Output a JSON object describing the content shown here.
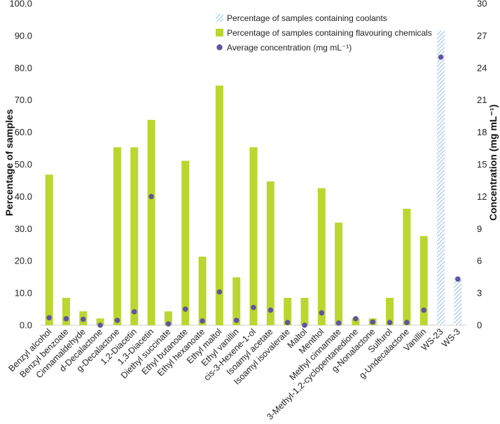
{
  "chart_data": {
    "type": "bar",
    "categories": [
      "Benzyl alcohol",
      "Benzyl benzoate",
      "Cinnamaldehyde",
      "d-Decalactone",
      "g-Decalactone",
      "1,2-Diacetin",
      "1,3-Diacetin",
      "Diethyl succinate",
      "Ethyl butanoate",
      "Ethyl hexanoate",
      "Ethyl maltol",
      "Ethyl vanillin",
      "cis-3-Hexene-1-ol",
      "Isoamyl acetate",
      "Isoamyl isovalerate",
      "Maltol",
      "Menthol",
      "Methyl cinnamate",
      "3-Methyl-1,2-cyclopentanedione",
      "g-Nonalactone",
      "Sulfurol",
      "g-Undecalactone",
      "Vanillin",
      "WS-23",
      "WS-3"
    ],
    "series": [
      {
        "name": "Percentage of samples containing coolants",
        "kind": "bar-hatched",
        "axis": "left",
        "color": "#9dc3e6",
        "values": [
          null,
          null,
          null,
          null,
          null,
          null,
          null,
          null,
          null,
          null,
          null,
          null,
          null,
          null,
          null,
          null,
          null,
          null,
          null,
          null,
          null,
          null,
          null,
          91.5,
          14.9
        ]
      },
      {
        "name": "Percentage of samples containing flavouring chemicals",
        "kind": "bar",
        "axis": "left",
        "color": "#bcd630",
        "values": [
          46.8,
          8.5,
          4.3,
          2.1,
          55.3,
          55.3,
          63.8,
          4.3,
          51.1,
          21.3,
          74.5,
          14.9,
          55.3,
          44.7,
          8.5,
          8.5,
          42.6,
          31.9,
          2.1,
          2.1,
          8.5,
          36.2,
          27.7,
          null,
          null
        ]
      },
      {
        "name": "Average concentration (mg mL⁻¹)",
        "kind": "scatter",
        "axis": "right",
        "color": "#5e56a0",
        "values": [
          0.7,
          0.6,
          0.55,
          0.0,
          0.45,
          1.25,
          12.0,
          0.12,
          1.5,
          0.4,
          3.1,
          0.45,
          1.65,
          1.4,
          0.25,
          0.0,
          1.15,
          0.2,
          0.6,
          0.3,
          0.25,
          0.25,
          1.4,
          25.0,
          4.3
        ]
      }
    ],
    "ylabel": "Percentage of samples",
    "ylabel_right": "Concentration (mg mL⁻¹)",
    "ylim": [
      0,
      100
    ],
    "ylim_right": [
      0,
      30
    ],
    "yticks": [
      "0.0",
      "10.0",
      "20.0",
      "30.0",
      "40.0",
      "50.0",
      "60.0",
      "70.0",
      "80.0",
      "90.0",
      "100.0"
    ],
    "yticks_right": [
      "0",
      "3",
      "6",
      "9",
      "12",
      "15",
      "18",
      "21",
      "24",
      "27",
      "30"
    ],
    "legend": "top-right",
    "grid": false
  }
}
